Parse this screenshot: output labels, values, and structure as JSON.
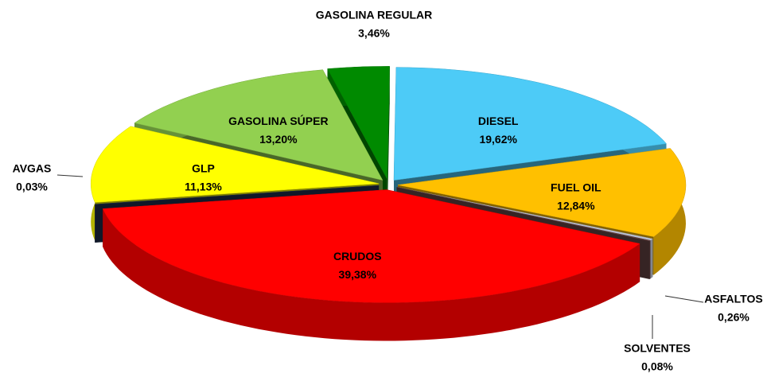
{
  "chart_data": {
    "type": "pie",
    "categories": [
      "GASOLINA REGULAR",
      "DIESEL",
      "FUEL OIL",
      "ASFALTOS",
      "SOLVENTES",
      "CRUDOS",
      "AVGAS",
      "GLP",
      "GASOLINA SÚPER"
    ],
    "values": [
      3.46,
      19.62,
      12.84,
      0.26,
      0.08,
      39.38,
      0.03,
      11.13,
      13.2
    ],
    "value_labels": [
      "3,46%",
      "19,62%",
      "12,84%",
      "0,26%",
      "0,08%",
      "39,38%",
      "0,03%",
      "11,13%",
      "13,20%"
    ],
    "colors": [
      "#008a00",
      "#4dcbf7",
      "#ffc000",
      "#b9bfd0",
      "#6b4848",
      "#ff0000",
      "#1f3050",
      "#ffff00",
      "#92d050"
    ]
  }
}
